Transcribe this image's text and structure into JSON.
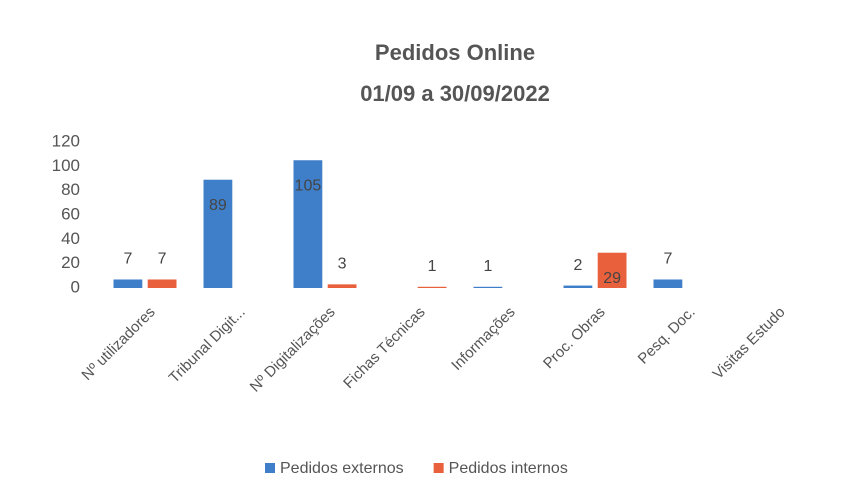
{
  "chart_data": {
    "type": "bar",
    "title": "Pedidos Online",
    "subtitle": "01/09 a 30/09/2022",
    "categories": [
      "Nº utilizadores",
      "Tribunal Digit...",
      "Nº Digitalizações",
      "Fichas Técnicas",
      "Informações",
      "Proc. Obras",
      "Pesq. Doc.",
      "Visitas Estudo"
    ],
    "series": [
      {
        "name": "Pedidos externos",
        "color": "#3f7fc9",
        "values": [
          7,
          89,
          105,
          null,
          1,
          2,
          7,
          null
        ]
      },
      {
        "name": "Pedidos internos",
        "color": "#e8603c",
        "values": [
          7,
          null,
          3,
          1,
          null,
          29,
          null,
          null
        ]
      }
    ],
    "ylim": [
      0,
      120
    ],
    "yticks": [
      0,
      20,
      40,
      60,
      80,
      100,
      120
    ],
    "grid": false,
    "legend": "bottom"
  }
}
